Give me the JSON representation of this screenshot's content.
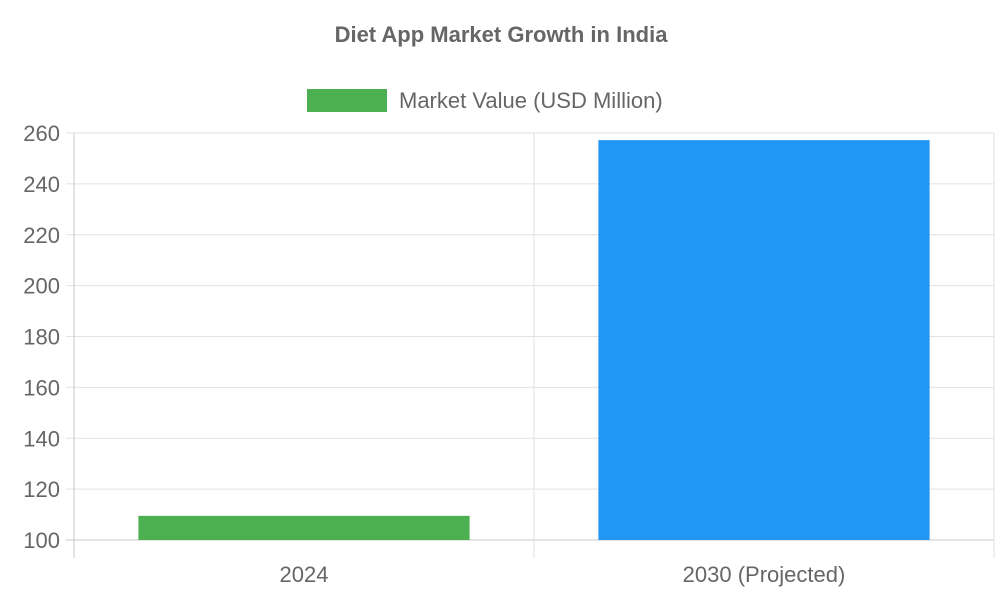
{
  "chart_data": {
    "type": "bar",
    "title": "Diet App Market Growth in India",
    "categories": [
      "2024",
      "2030 (Projected)"
    ],
    "series": [
      {
        "name": "Market Value (USD Million)",
        "values": [
          109.5,
          257.2
        ],
        "colors": [
          "#4caf50",
          "#2196f3"
        ]
      }
    ],
    "legend": {
      "position": "top",
      "swatch_color": "#4caf50"
    },
    "ylim": [
      100,
      260
    ],
    "y_ticks": [
      100,
      120,
      140,
      160,
      180,
      200,
      220,
      240,
      260
    ],
    "grid": true,
    "xlabel": "",
    "ylabel": ""
  },
  "colors": {
    "text": "#666666",
    "grid": "#e2e2e2",
    "axis": "#c8c8c8"
  }
}
